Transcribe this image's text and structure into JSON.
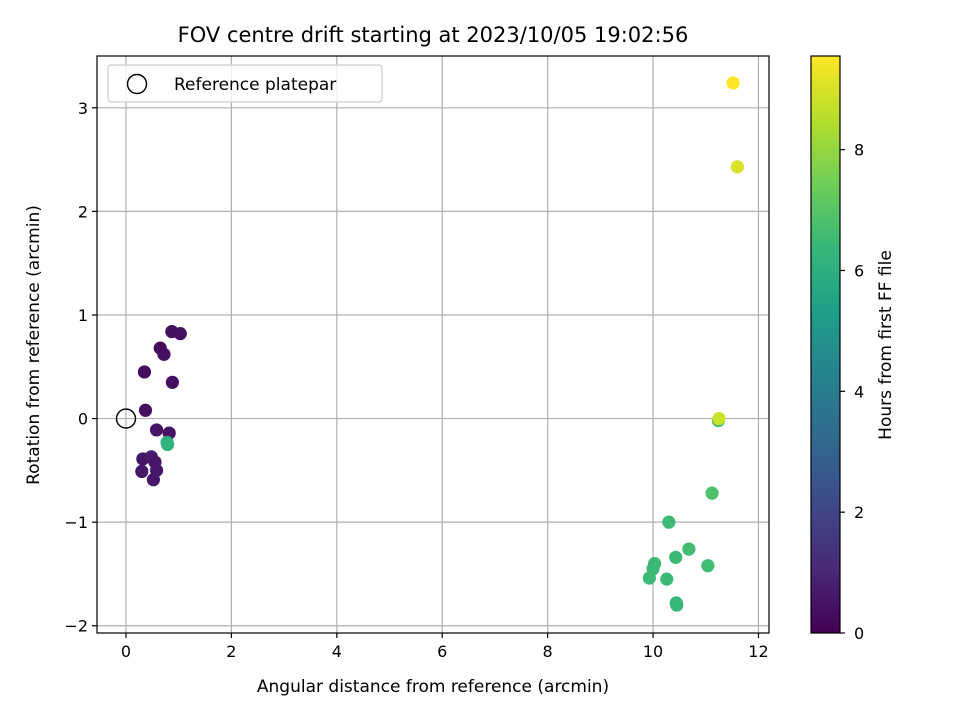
{
  "chart_data": {
    "type": "scatter",
    "title": "FOV centre drift starting at 2023/10/05 19:02:56",
    "xlabel": "Angular distance from reference (arcmin)",
    "ylabel": "Rotation from reference (arcmin)",
    "xlim": [
      -0.55,
      12.2
    ],
    "ylim": [
      -2.07,
      3.5
    ],
    "xticks": [
      0,
      2,
      4,
      6,
      8,
      10,
      12
    ],
    "yticks": [
      -2,
      -1,
      0,
      1,
      2,
      3
    ],
    "xtick_labels": [
      "0",
      "2",
      "4",
      "6",
      "8",
      "10",
      "12"
    ],
    "ytick_labels": [
      "−2",
      "−1",
      "0",
      "1",
      "2",
      "3"
    ],
    "grid": true,
    "legend": {
      "placement": "top-left",
      "label": "Reference platepar"
    },
    "reference_point": {
      "x": 0,
      "y": 0
    },
    "colorbar": {
      "label": "Hours from first FF file",
      "colormap": "viridis",
      "range": [
        0,
        9.55
      ],
      "ticks": [
        0,
        2,
        4,
        6,
        8
      ],
      "tick_labels": [
        "0",
        "2",
        "4",
        "6",
        "8"
      ]
    },
    "points": [
      {
        "x": 0.87,
        "y": 0.84,
        "hours": 0.4
      },
      {
        "x": 1.03,
        "y": 0.82,
        "hours": 0.4
      },
      {
        "x": 0.65,
        "y": 0.68,
        "hours": 0.3
      },
      {
        "x": 0.72,
        "y": 0.62,
        "hours": 0.4
      },
      {
        "x": 0.35,
        "y": 0.45,
        "hours": 0.3
      },
      {
        "x": 0.88,
        "y": 0.35,
        "hours": 0.4
      },
      {
        "x": 0.37,
        "y": 0.08,
        "hours": 0.4
      },
      {
        "x": 0.58,
        "y": -0.11,
        "hours": 0.5
      },
      {
        "x": 0.82,
        "y": -0.14,
        "hours": 0.5
      },
      {
        "x": 0.32,
        "y": -0.39,
        "hours": 0.6
      },
      {
        "x": 0.48,
        "y": -0.37,
        "hours": 0.7
      },
      {
        "x": 0.55,
        "y": -0.42,
        "hours": 0.6
      },
      {
        "x": 0.58,
        "y": -0.5,
        "hours": 0.6
      },
      {
        "x": 0.3,
        "y": -0.51,
        "hours": 0.6
      },
      {
        "x": 0.52,
        "y": -0.59,
        "hours": 0.6
      },
      {
        "x": 0.78,
        "y": -0.23,
        "hours": 6.0
      },
      {
        "x": 0.79,
        "y": -0.25,
        "hours": 6.2
      },
      {
        "x": 11.24,
        "y": -0.02,
        "hours": 6.6
      },
      {
        "x": 11.25,
        "y": 0.0,
        "hours": 8.8
      },
      {
        "x": 11.12,
        "y": -0.72,
        "hours": 6.8
      },
      {
        "x": 10.3,
        "y": -1.0,
        "hours": 6.5
      },
      {
        "x": 10.68,
        "y": -1.26,
        "hours": 6.6
      },
      {
        "x": 10.43,
        "y": -1.34,
        "hours": 6.5
      },
      {
        "x": 10.03,
        "y": -1.4,
        "hours": 6.5
      },
      {
        "x": 10.0,
        "y": -1.45,
        "hours": 6.5
      },
      {
        "x": 11.04,
        "y": -1.42,
        "hours": 6.6
      },
      {
        "x": 9.93,
        "y": -1.54,
        "hours": 6.5
      },
      {
        "x": 10.26,
        "y": -1.55,
        "hours": 6.5
      },
      {
        "x": 10.44,
        "y": -1.78,
        "hours": 6.4
      },
      {
        "x": 10.45,
        "y": -1.8,
        "hours": 6.4
      },
      {
        "x": 11.6,
        "y": 2.43,
        "hours": 9.0
      },
      {
        "x": 11.52,
        "y": 3.24,
        "hours": 9.55
      }
    ]
  }
}
